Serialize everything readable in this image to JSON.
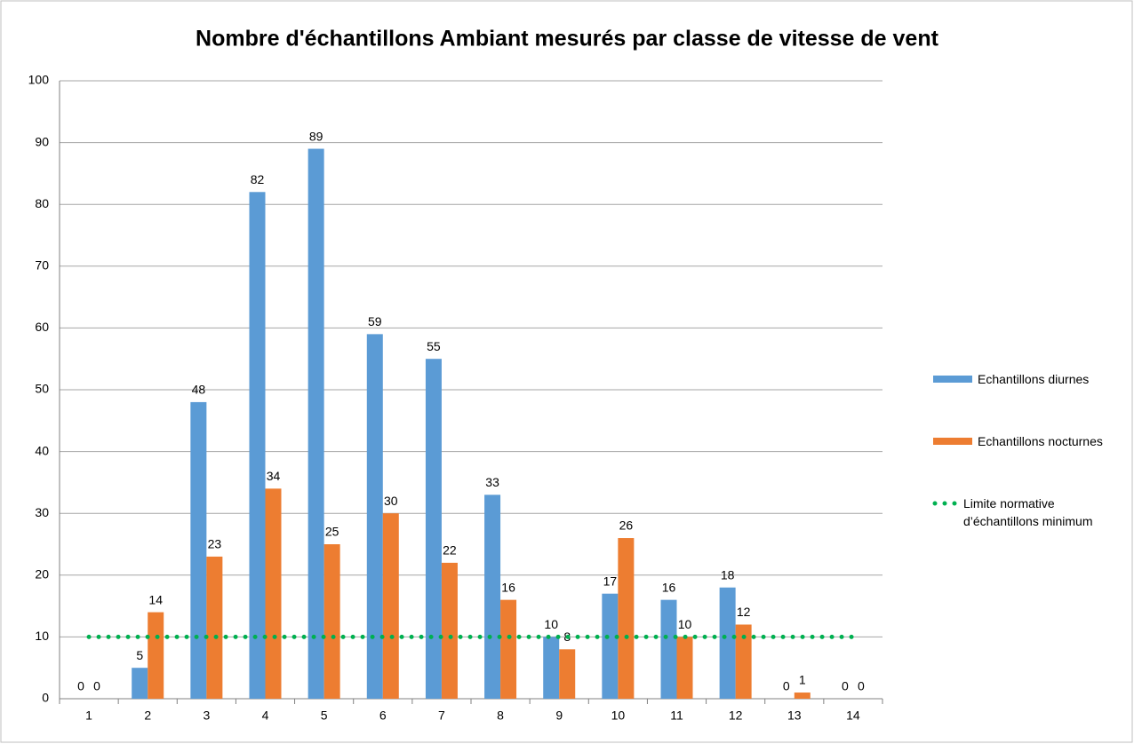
{
  "chart_data": {
    "type": "bar",
    "title": "Nombre d'échantillons Ambiant mesurés par classe de vitesse de vent",
    "categories": [
      "1",
      "2",
      "3",
      "4",
      "5",
      "6",
      "7",
      "8",
      "9",
      "10",
      "11",
      "12",
      "13",
      "14"
    ],
    "series": [
      {
        "name": "Echantillons diurnes",
        "color": "#5b9bd5",
        "values": [
          0,
          5,
          48,
          82,
          89,
          59,
          55,
          33,
          10,
          17,
          16,
          18,
          0,
          0
        ]
      },
      {
        "name": "Echantillons nocturnes",
        "color": "#ed7d31",
        "values": [
          0,
          14,
          23,
          34,
          25,
          30,
          22,
          16,
          8,
          26,
          10,
          12,
          1,
          0
        ]
      },
      {
        "name": "Limite normative d’échantillons minimum",
        "color": "#00b050",
        "type": "line",
        "values": [
          10,
          10,
          10,
          10,
          10,
          10,
          10,
          10,
          10,
          10,
          10,
          10,
          10,
          10
        ]
      }
    ],
    "ylim": [
      0,
      100
    ],
    "yticks": [
      0,
      10,
      20,
      30,
      40,
      50,
      60,
      70,
      80,
      90,
      100
    ],
    "grid": true,
    "legend": "right"
  }
}
